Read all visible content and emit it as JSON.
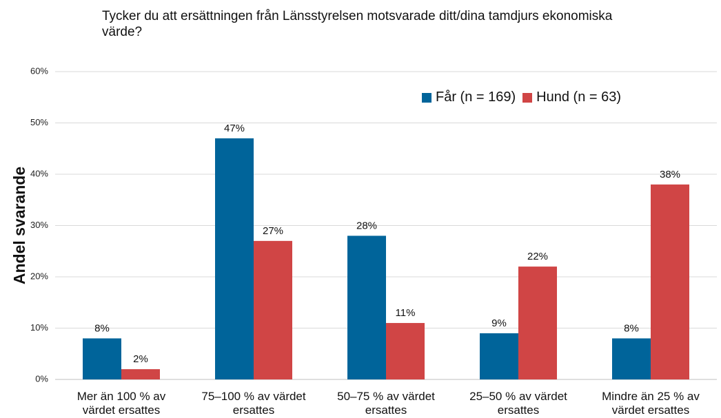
{
  "chart_data": {
    "type": "bar",
    "title": "Tycker du att ersättningen från Länsstyrelsen motsvarade ditt/dina tamdjurs ekonomiska värde?",
    "ylabel": "Andel svarande",
    "categories": [
      "Mer än 100 % av värdet ersattes",
      "75–100 % av värdet ersattes",
      "50–75 % av värdet ersattes",
      "25–50 % av värdet ersattes",
      "Mindre än 25 % av värdet ersattes"
    ],
    "series": [
      {
        "name": "Får (n = 169)",
        "color": "#00649a",
        "values": [
          8,
          47,
          28,
          9,
          8
        ],
        "value_labels": [
          "8%",
          "47%",
          "28%",
          "9%",
          "8%"
        ]
      },
      {
        "name": "Hund (n = 63)",
        "color": "#d04545",
        "values": [
          2,
          27,
          11,
          22,
          38
        ],
        "value_labels": [
          "2%",
          "27%",
          "11%",
          "22%",
          "38%"
        ]
      }
    ],
    "ylim": [
      0,
      60
    ],
    "yticks": [
      {
        "value": 0,
        "label": "0%"
      },
      {
        "value": 10,
        "label": "10%"
      },
      {
        "value": 20,
        "label": "20%"
      },
      {
        "value": 30,
        "label": "30%"
      },
      {
        "value": 40,
        "label": "40%"
      },
      {
        "value": 50,
        "label": "50%"
      },
      {
        "value": 60,
        "label": "60%"
      }
    ],
    "grid": true,
    "legend": "upper right"
  }
}
